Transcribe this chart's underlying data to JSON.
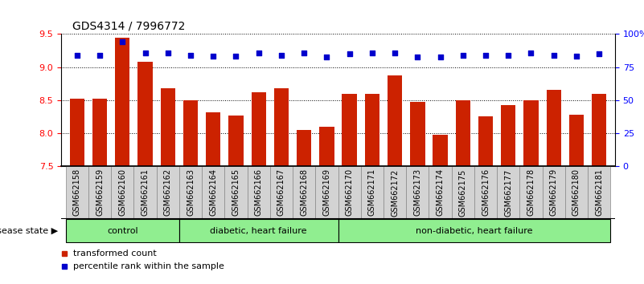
{
  "title": "GDS4314 / 7996772",
  "samples": [
    "GSM662158",
    "GSM662159",
    "GSM662160",
    "GSM662161",
    "GSM662162",
    "GSM662163",
    "GSM662164",
    "GSM662165",
    "GSM662166",
    "GSM662167",
    "GSM662168",
    "GSM662169",
    "GSM662170",
    "GSM662171",
    "GSM662172",
    "GSM662173",
    "GSM662174",
    "GSM662175",
    "GSM662176",
    "GSM662177",
    "GSM662178",
    "GSM662179",
    "GSM662180",
    "GSM662181"
  ],
  "bar_values": [
    8.52,
    8.52,
    9.45,
    9.08,
    8.68,
    8.5,
    8.32,
    8.27,
    8.62,
    8.68,
    8.05,
    8.1,
    8.6,
    8.6,
    8.88,
    8.47,
    7.97,
    8.5,
    8.25,
    8.43,
    8.5,
    8.65,
    8.28,
    8.6
  ],
  "pct_left_axis": [
    9.18,
    9.18,
    9.38,
    9.22,
    9.22,
    9.18,
    9.17,
    9.17,
    9.22,
    9.18,
    9.22,
    9.15,
    9.2,
    9.22,
    9.22,
    9.15,
    9.15,
    9.18,
    9.18,
    9.18,
    9.22,
    9.18,
    9.17,
    9.2
  ],
  "bar_color": "#cc2200",
  "percentile_color": "#0000cc",
  "ymin": 7.5,
  "ymax": 9.5,
  "yticks_left": [
    7.5,
    8.0,
    8.5,
    9.0,
    9.5
  ],
  "ytick_labels_right": [
    "0",
    "25",
    "50",
    "75",
    "100%"
  ],
  "yticks_right": [
    0,
    25,
    50,
    75,
    100
  ],
  "groups": [
    {
      "label": "control",
      "xstart": -0.5,
      "xend": 4.5
    },
    {
      "label": "diabetic, heart failure",
      "xstart": 4.5,
      "xend": 11.5
    },
    {
      "label": "non-diabetic, heart failure",
      "xstart": 11.5,
      "xend": 23.5
    }
  ],
  "group_color": "#90EE90",
  "disease_state_label": "disease state",
  "legend_bar_label": "transformed count",
  "legend_pct_label": "percentile rank within the sample",
  "title_fontsize": 10,
  "tick_fontsize": 7,
  "label_fontsize": 8,
  "sample_box_color": "#d3d3d3",
  "sample_box_edge": "#888888"
}
